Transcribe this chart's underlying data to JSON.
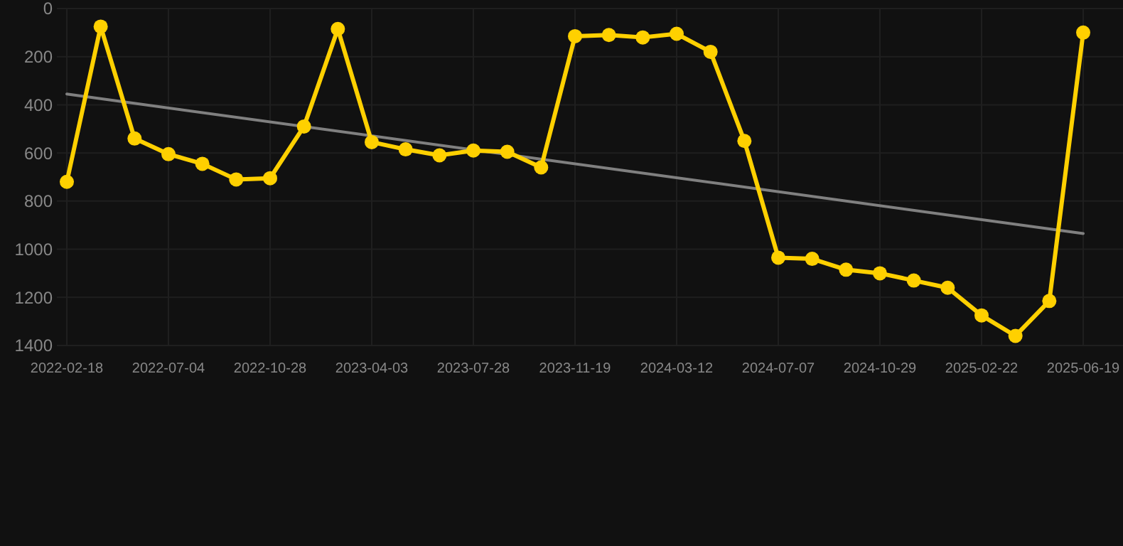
{
  "chart_data": {
    "type": "line",
    "categories": [
      "2022-02-18",
      null,
      null,
      "2022-07-04",
      null,
      null,
      "2022-10-28",
      null,
      null,
      "2023-04-03",
      null,
      null,
      "2023-07-28",
      null,
      null,
      "2023-11-19",
      null,
      null,
      "2024-03-12",
      null,
      null,
      "2024-07-07",
      null,
      null,
      "2024-10-29",
      null,
      null,
      "2025-02-22",
      null,
      null,
      "2025-06-19"
    ],
    "series": [
      {
        "color": "#ffd000",
        "marker": "circle",
        "values": [
          720,
          75,
          540,
          605,
          645,
          710,
          705,
          490,
          85,
          555,
          585,
          610,
          590,
          595,
          660,
          115,
          110,
          120,
          105,
          180,
          550,
          1035,
          1040,
          1085,
          1100,
          1130,
          1160,
          1275,
          1360,
          1215,
          100
        ]
      },
      {
        "type": "line",
        "color": "#808080",
        "marker": "none",
        "values": [
          355,
          null,
          null,
          null,
          null,
          null,
          null,
          null,
          null,
          null,
          null,
          null,
          null,
          null,
          null,
          null,
          null,
          null,
          null,
          null,
          null,
          null,
          null,
          null,
          null,
          null,
          null,
          null,
          null,
          null,
          935
        ]
      }
    ],
    "ylim": [
      1400,
      0
    ],
    "yticks": [
      0,
      200,
      400,
      600,
      800,
      1000,
      1200,
      1400
    ],
    "grid": true,
    "line_style": "solid"
  }
}
